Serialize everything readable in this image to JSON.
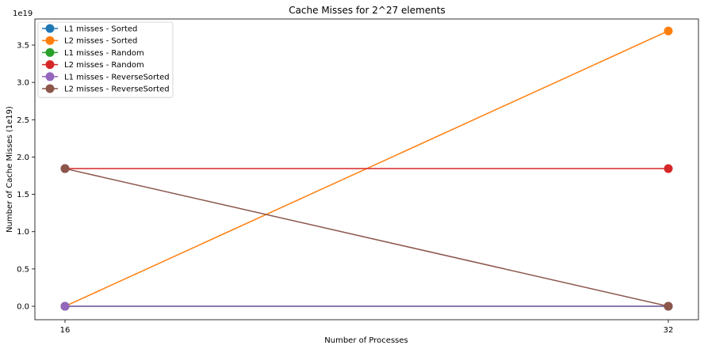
{
  "chart_data": {
    "type": "line",
    "title": "Cache Misses for 2^27 elements",
    "xlabel": "Number of Processes",
    "ylabel": "Number of Cache Misses (1e19)",
    "y_offset_label": "1e19",
    "x": [
      16,
      32
    ],
    "x_tick_labels": [
      "16",
      "32"
    ],
    "y_ticks": [
      0.0,
      0.5,
      1.0,
      1.5,
      2.0,
      2.5,
      3.0,
      3.5
    ],
    "y_tick_labels": [
      "0.0",
      "0.5",
      "1.0",
      "1.5",
      "2.0",
      "2.5",
      "3.0",
      "3.5"
    ],
    "ylim": [
      -0.18,
      3.85
    ],
    "grid": false,
    "legend_position": "top-left",
    "series": [
      {
        "name": "L1 misses - Sorted",
        "color": "#1f77b4",
        "values": [
          0.0,
          0.0
        ]
      },
      {
        "name": "L2 misses - Sorted",
        "color": "#ff7f0e",
        "values": [
          0.0,
          3.69
        ]
      },
      {
        "name": "L1 misses - Random",
        "color": "#2ca02c",
        "values": [
          0.0,
          0.0
        ]
      },
      {
        "name": "L2 misses - Random",
        "color": "#d62728",
        "values": [
          1.845,
          1.845
        ]
      },
      {
        "name": "L1 misses - ReverseSorted",
        "color": "#9467bd",
        "values": [
          0.0,
          0.0
        ]
      },
      {
        "name": "L2 misses - ReverseSorted",
        "color": "#8c564b",
        "values": [
          1.845,
          0.0
        ]
      }
    ]
  }
}
